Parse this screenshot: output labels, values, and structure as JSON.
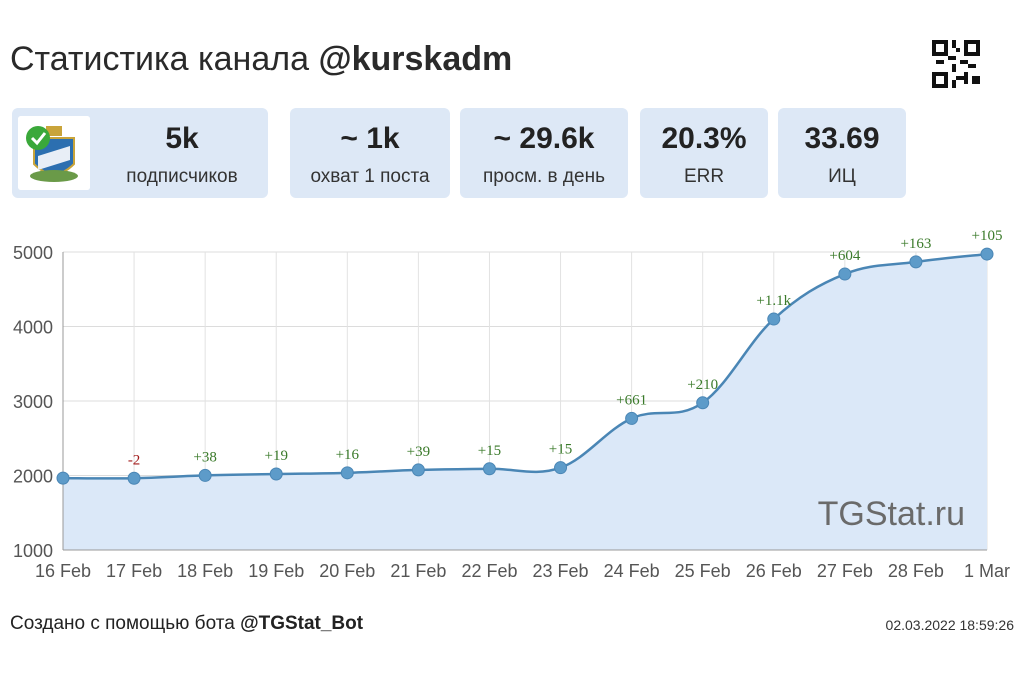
{
  "header": {
    "title_prefix": "Статистика канала",
    "channel": "@kurskadm"
  },
  "stats": [
    {
      "value": "5k",
      "label": "подписчиков"
    },
    {
      "value": "~ 1k",
      "label": "охват 1 поста"
    },
    {
      "value": "~ 29.6k",
      "label": "просм. в день"
    },
    {
      "value": "20.3%",
      "label": "ERR"
    },
    {
      "value": "33.69",
      "label": "ИЦ"
    }
  ],
  "watermark": "TGStat.ru",
  "footer": {
    "prefix": "Создано с помощью бота",
    "bot": "@TGStat_Bot",
    "timestamp": "02.03.2022 18:59:26"
  },
  "colors": {
    "line": "#4a86b5",
    "fill": "#dbe8f8",
    "point": "#5d9bc9",
    "positive": "#3a7a2a",
    "negative": "#a01818",
    "card": "#dde8f6"
  },
  "chart_data": {
    "type": "area",
    "categories": [
      "16 Feb",
      "17 Feb",
      "18 Feb",
      "19 Feb",
      "20 Feb",
      "21 Feb",
      "22 Feb",
      "23 Feb",
      "24 Feb",
      "25 Feb",
      "26 Feb",
      "27 Feb",
      "28 Feb",
      "1 Mar"
    ],
    "values": [
      1965,
      1963,
      2001,
      2020,
      2036,
      2075,
      2090,
      2105,
      2766,
      2976,
      4100,
      4704,
      4867,
      4972
    ],
    "labels": [
      "",
      "-2",
      "+38",
      "+19",
      "+16",
      "+39",
      "+15",
      "+15",
      "+661",
      "+210",
      "+1.1k",
      "+604",
      "+163",
      "+105"
    ],
    "ylim": [
      1000,
      5000
    ],
    "yticks": [
      1000,
      2000,
      3000,
      4000,
      5000
    ],
    "grid": true
  }
}
